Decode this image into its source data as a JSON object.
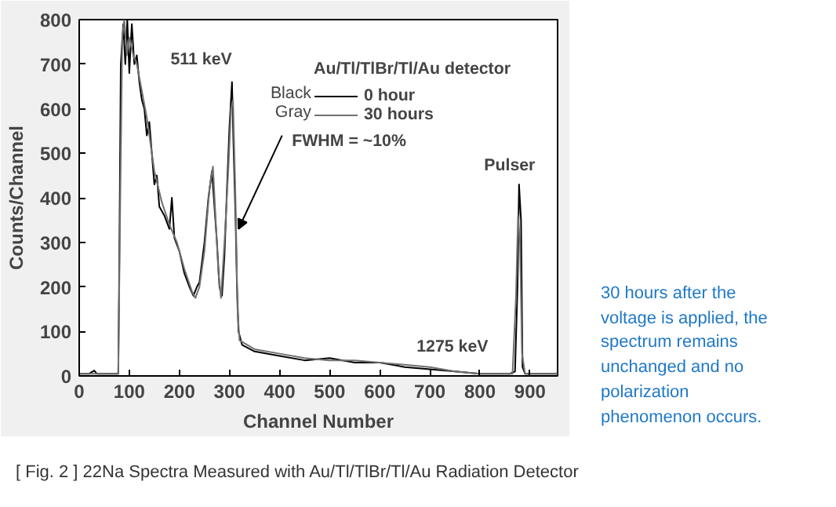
{
  "chart_data": {
    "type": "line",
    "xlabel": "Channel Number",
    "ylabel": "Counts/Channel",
    "legend_title": "Au/Tl/TlBr/Tl/Au detector",
    "legend": "top right",
    "grid": false,
    "marker": "none",
    "line_style": "solid",
    "xlim": [
      0,
      955
    ],
    "xticks": [
      0,
      100,
      200,
      300,
      400,
      500,
      600,
      700,
      800,
      900
    ],
    "ylim": [
      0,
      800
    ],
    "yticks": [
      0,
      100,
      200,
      300,
      400,
      500,
      600,
      700,
      800
    ],
    "series": [
      {
        "name": "0 hour",
        "color": "#000000",
        "x": [
          0,
          20,
          30,
          35,
          78,
          80,
          83,
          88,
          92,
          96,
          100,
          105,
          110,
          115,
          120,
          125,
          130,
          135,
          140,
          145,
          150,
          155,
          160,
          170,
          180,
          185,
          190,
          200,
          210,
          220,
          228,
          235,
          240,
          250,
          258,
          265,
          270,
          275,
          280,
          285,
          290,
          295,
          300,
          305,
          308,
          312,
          315,
          318,
          325,
          350,
          400,
          450,
          500,
          550,
          600,
          650,
          700,
          750,
          800,
          860,
          870,
          875,
          878,
          882,
          885,
          890,
          955
        ],
        "values": [
          5,
          5,
          12,
          5,
          5,
          250,
          700,
          790,
          700,
          800,
          680,
          790,
          700,
          720,
          660,
          620,
          600,
          540,
          570,
          500,
          430,
          450,
          380,
          360,
          330,
          400,
          310,
          280,
          230,
          200,
          180,
          200,
          210,
          300,
          400,
          460,
          380,
          300,
          200,
          180,
          270,
          420,
          560,
          660,
          520,
          360,
          200,
          100,
          70,
          55,
          45,
          35,
          40,
          30,
          30,
          20,
          15,
          10,
          5,
          5,
          10,
          200,
          430,
          350,
          20,
          5,
          5
        ]
      },
      {
        "name": "30 hours",
        "color": "#707070",
        "x": [
          0,
          78,
          82,
          86,
          90,
          95,
          100,
          108,
          115,
          125,
          135,
          150,
          165,
          180,
          195,
          210,
          225,
          232,
          240,
          250,
          260,
          267,
          272,
          278,
          283,
          290,
          298,
          303,
          307,
          312,
          316,
          320,
          350,
          400,
          450,
          500,
          550,
          600,
          650,
          700,
          750,
          800,
          865,
          872,
          876,
          880,
          884,
          890,
          955
        ],
        "values": [
          5,
          5,
          400,
          760,
          800,
          720,
          760,
          720,
          700,
          640,
          580,
          460,
          390,
          340,
          300,
          240,
          190,
          175,
          200,
          280,
          420,
          470,
          360,
          230,
          175,
          300,
          470,
          600,
          620,
          400,
          150,
          80,
          60,
          50,
          40,
          35,
          35,
          30,
          25,
          20,
          10,
          5,
          5,
          180,
          360,
          300,
          50,
          5,
          5
        ]
      }
    ],
    "annotations": [
      "30 hours after the voltage is applied, the spectrum remains unchanged and no polarization phenomenon occurs.",
      "Black",
      "Gray",
      {
        "text": "511 keV",
        "x": 300,
        "y": 660
      },
      {
        "text": "FWHM = ~10%",
        "x": 315,
        "y": 330
      },
      {
        "text": "Pulser",
        "x": 878,
        "y": 430
      },
      {
        "text": "1275 keV",
        "x": 745,
        "y": 30
      },
      "[ Fig. 2 ] 22Na Spectra Measured with Au/Tl/TlBr/Tl/Au Radiation Detector"
    ]
  }
}
